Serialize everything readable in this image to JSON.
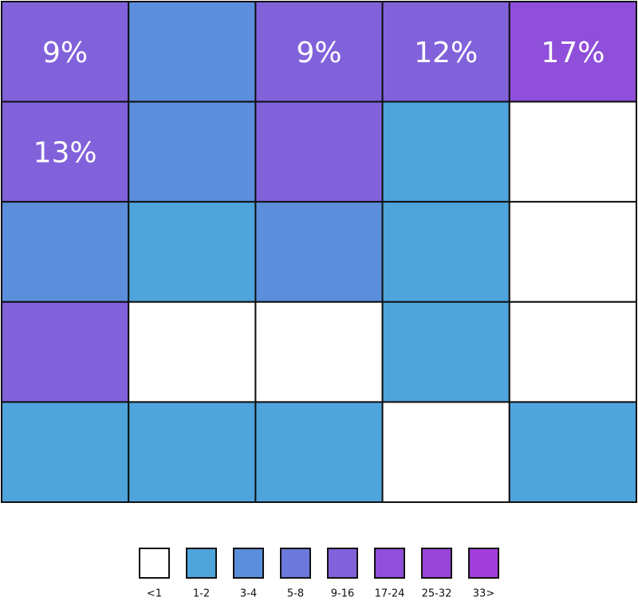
{
  "chart_data": {
    "type": "heatmap",
    "values": [
      [
        9,
        3.5,
        9,
        12,
        17
      ],
      [
        13,
        3.5,
        10,
        1.5,
        0.5
      ],
      [
        3.5,
        1.5,
        3.5,
        1.5,
        0.5
      ],
      [
        10,
        0.5,
        0.5,
        1.5,
        0.5
      ],
      [
        1.5,
        1.5,
        1.5,
        0.5,
        1.5
      ]
    ],
    "value_labels": [
      [
        "9%",
        null,
        "9%",
        "12%",
        "17%"
      ],
      [
        "13%",
        null,
        null,
        null,
        null
      ],
      [
        null,
        null,
        null,
        null,
        null
      ],
      [
        null,
        null,
        null,
        null,
        null
      ],
      [
        null,
        null,
        null,
        null,
        null
      ]
    ],
    "legend": [
      {
        "value": 0,
        "label": "<1",
        "color": "#ffffff"
      },
      {
        "value": 1,
        "label": "1-2",
        "color": "#4fa4dc"
      },
      {
        "value": 3,
        "label": "3-4",
        "color": "#5b8edb"
      },
      {
        "value": 5,
        "label": "5-8",
        "color": "#6c78db"
      },
      {
        "value": 9,
        "label": "9-16",
        "color": "#8162db"
      },
      {
        "value": 17,
        "label": "17-24",
        "color": "#8f4fda"
      },
      {
        "value": 25,
        "label": "25-32",
        "color": "#9a45da"
      },
      {
        "value": 33,
        "label": "33>",
        "color": "#a43edb"
      }
    ]
  }
}
